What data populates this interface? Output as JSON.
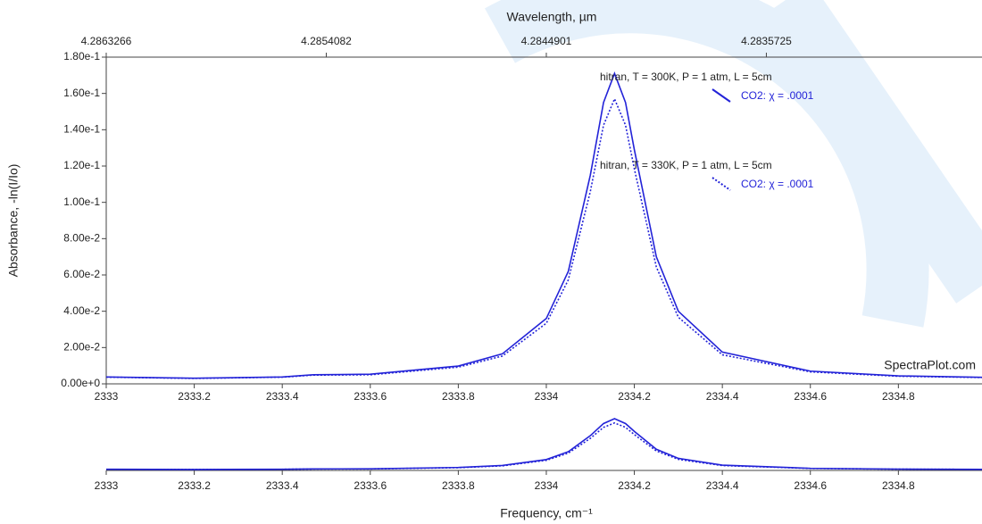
{
  "chart_data": {
    "type": "line",
    "x_label": "Frequency, cm⁻¹",
    "x2_label": "Wavelength, µm",
    "y_label": "Absorbance, -ln(I/Io)",
    "watermark": "SpectraPlot.com",
    "xlim": [
      2333,
      2334.99
    ],
    "xticks": [
      2333,
      2333.2,
      2333.4,
      2333.6,
      2333.8,
      2334,
      2334.2,
      2334.4,
      2334.6,
      2334.8
    ],
    "x2ticks": [
      4.2863266,
      4.2854082,
      4.2844901,
      4.2835725
    ],
    "ylim": [
      0,
      0.18
    ],
    "yticks": [
      {
        "value": 0,
        "label": "0.00e+0"
      },
      {
        "value": 0.02,
        "label": "2.00e-2"
      },
      {
        "value": 0.04,
        "label": "4.00e-2"
      },
      {
        "value": 0.06,
        "label": "6.00e-2"
      },
      {
        "value": 0.08,
        "label": "8.00e-2"
      },
      {
        "value": 0.1,
        "label": "1.00e-1"
      },
      {
        "value": 0.12,
        "label": "1.20e-1"
      },
      {
        "value": 0.14,
        "label": "1.40e-1"
      },
      {
        "value": 0.16,
        "label": "1.60e-1"
      },
      {
        "value": 0.18,
        "label": "1.80e-1"
      }
    ],
    "x": [
      2333,
      2333.2,
      2333.4,
      2333.47,
      2333.6,
      2333.8,
      2333.9,
      2334,
      2334.05,
      2334.1,
      2334.13,
      2334.155,
      2334.18,
      2334.2,
      2334.25,
      2334.3,
      2334.4,
      2334.6,
      2334.8,
      2334.99
    ],
    "series": [
      {
        "header": "hitran, T = 300K, P = 1 atm, L = 5cm",
        "name": "CO2: χ = .0001",
        "color": "#2323d8",
        "style": "solid",
        "values": [
          0.0038,
          0.0031,
          0.0038,
          0.005,
          0.0053,
          0.0098,
          0.0165,
          0.036,
          0.062,
          0.115,
          0.155,
          0.171,
          0.155,
          0.129,
          0.07,
          0.04,
          0.0175,
          0.007,
          0.0044,
          0.0036
        ]
      },
      {
        "header": "hitran, T = 330K, P = 1 atm, L = 5cm",
        "name": "CO2: χ = .0001",
        "color": "#2323d8",
        "style": "dotted",
        "values": [
          0.0037,
          0.003,
          0.0037,
          0.0048,
          0.005,
          0.0092,
          0.0153,
          0.0334,
          0.0573,
          0.106,
          0.1425,
          0.157,
          0.1425,
          0.1185,
          0.0644,
          0.0367,
          0.016,
          0.0066,
          0.0042,
          0.0035
        ]
      }
    ]
  }
}
